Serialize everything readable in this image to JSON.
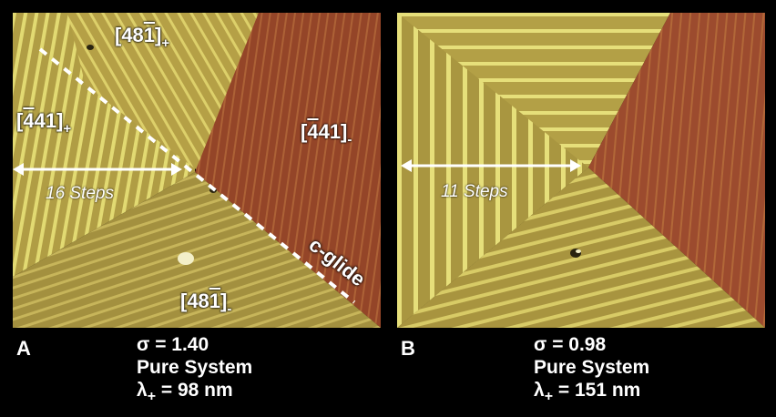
{
  "panel_a": {
    "caption_letter": "A",
    "sigma": "σ = 1.40",
    "system": "Pure System",
    "lambda_prefix": "λ",
    "lambda_sub": "+",
    "lambda_value": " = 98 nm",
    "steps_label": "16 Steps",
    "glide_label": "c-glide",
    "labels": {
      "top": {
        "bracket_open": "[48",
        "bar": "1",
        "bracket_close": "]",
        "sub": "+"
      },
      "left": {
        "bracket_open": "[",
        "bar": "4",
        "rest": "41]",
        "sub": "+"
      },
      "right": {
        "bracket_open": "[",
        "bar": "4",
        "rest": "41]",
        "sub": "-"
      },
      "bottom": {
        "bracket_open": "[48",
        "bar": "1",
        "bracket_close": "]",
        "sub": "-"
      }
    }
  },
  "panel_b": {
    "caption_letter": "B",
    "sigma": "σ = 0.98",
    "system": "Pure System",
    "lambda_prefix": "λ",
    "lambda_sub": "+",
    "lambda_value": " = 151 nm",
    "steps_label": "11 Steps"
  },
  "colors": {
    "background": "#000000",
    "terrace_yellow": "#b9a64a",
    "terrace_olive": "#a28c3e",
    "terrace_red": "#9a4a2e",
    "step_highlight": "#e6df7a",
    "annotation": "#ffffff"
  }
}
